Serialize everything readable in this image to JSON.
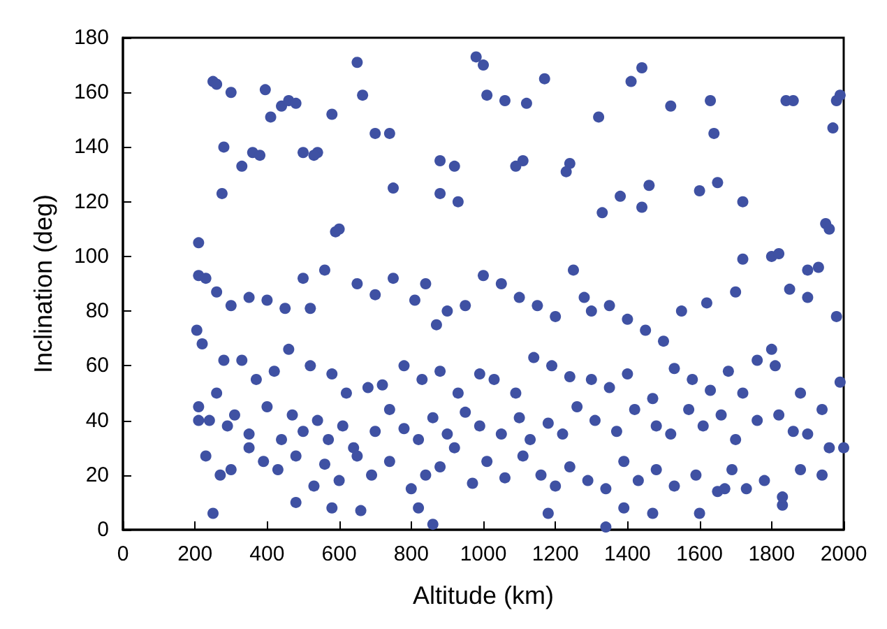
{
  "chart_data": {
    "type": "scatter",
    "xlabel": "Altitude (km)",
    "ylabel": "Inclination (deg)",
    "xlim": [
      0,
      2000
    ],
    "xticks": [
      0,
      200,
      400,
      600,
      800,
      1000,
      1200,
      1400,
      1600,
      1800,
      2000
    ],
    "ylim": [
      0,
      180
    ],
    "yticks": [
      0,
      20,
      40,
      60,
      80,
      100,
      120,
      140,
      160,
      180
    ],
    "marker": "circle",
    "series": [
      {
        "color": "#3f51a3",
        "x": [
          250,
          260,
          210,
          205,
          210,
          300,
          330,
          395,
          410,
          440,
          460,
          650,
          665,
          700,
          980,
          1000,
          1010,
          1060,
          1120,
          1170,
          1410,
          1440,
          1520,
          1630,
          1640,
          1840,
          1860,
          1980,
          1990,
          1970,
          1320,
          1330,
          1240,
          1230,
          1110,
          1090,
          880,
          920,
          750,
          740,
          540,
          580,
          480,
          500,
          530,
          360,
          380,
          280,
          275,
          880,
          930,
          1380,
          1440,
          1460,
          1600,
          1650,
          1720,
          1950,
          1960,
          1720,
          1800,
          1820,
          1900,
          1930,
          210,
          230,
          260,
          300,
          350,
          400,
          450,
          500,
          520,
          560,
          600,
          590,
          650,
          700,
          750,
          810,
          840,
          870,
          900,
          950,
          1000,
          1050,
          1100,
          1150,
          1200,
          1250,
          1280,
          1300,
          1350,
          1400,
          1450,
          1500,
          1550,
          1620,
          1700,
          1760,
          1800,
          1850,
          1900,
          1980,
          220,
          280,
          330,
          370,
          420,
          460,
          520,
          580,
          620,
          680,
          720,
          780,
          830,
          880,
          930,
          990,
          1030,
          1090,
          1140,
          1190,
          1240,
          1300,
          1350,
          1400,
          1470,
          1530,
          1580,
          1630,
          1680,
          1720,
          1810,
          1880,
          1940,
          1990,
          210,
          240,
          260,
          290,
          310,
          350,
          400,
          440,
          470,
          500,
          540,
          570,
          610,
          640,
          700,
          740,
          780,
          820,
          860,
          900,
          950,
          990,
          1050,
          1100,
          1130,
          1180,
          1220,
          1260,
          1310,
          1370,
          1420,
          1480,
          1520,
          1570,
          1610,
          1660,
          1700,
          1760,
          1820,
          1860,
          1900,
          1960,
          2000,
          230,
          270,
          300,
          350,
          390,
          430,
          480,
          530,
          560,
          600,
          650,
          690,
          740,
          800,
          840,
          880,
          920,
          970,
          1010,
          1060,
          1110,
          1160,
          1200,
          1240,
          1290,
          1340,
          1390,
          1430,
          1480,
          1530,
          1590,
          1650,
          1690,
          1730,
          1780,
          1830,
          1880,
          1940,
          250,
          480,
          580,
          660,
          820,
          860,
          1180,
          1340,
          1390,
          1470,
          1600,
          1670,
          1830
        ],
        "values": [
          164,
          163,
          105,
          73,
          40,
          160,
          133,
          161,
          151,
          155,
          157,
          171,
          159,
          145,
          173,
          170,
          159,
          157,
          156,
          165,
          164,
          169,
          155,
          157,
          145,
          157,
          157,
          157,
          159,
          147,
          151,
          116,
          134,
          131,
          135,
          133,
          135,
          133,
          125,
          145,
          138,
          152,
          156,
          138,
          137,
          138,
          137,
          140,
          123,
          123,
          120,
          122,
          118,
          126,
          124,
          127,
          120,
          112,
          110,
          99,
          100,
          101,
          95,
          96,
          93,
          92,
          87,
          82,
          85,
          84,
          81,
          92,
          81,
          95,
          110,
          109,
          90,
          86,
          92,
          84,
          90,
          75,
          80,
          82,
          93,
          90,
          85,
          82,
          78,
          95,
          85,
          80,
          82,
          77,
          73,
          69,
          80,
          83,
          87,
          62,
          66,
          88,
          85,
          78,
          68,
          62,
          62,
          55,
          58,
          66,
          60,
          57,
          50,
          52,
          53,
          60,
          55,
          58,
          50,
          57,
          55,
          50,
          63,
          60,
          56,
          55,
          52,
          57,
          48,
          59,
          55,
          51,
          58,
          50,
          60,
          50,
          44,
          54,
          45,
          40,
          50,
          38,
          42,
          35,
          45,
          33,
          42,
          36,
          40,
          33,
          38,
          30,
          36,
          44,
          37,
          33,
          41,
          35,
          43,
          38,
          35,
          41,
          33,
          39,
          35,
          45,
          40,
          36,
          44,
          38,
          35,
          44,
          38,
          42,
          33,
          40,
          42,
          36,
          35,
          30,
          30,
          27,
          20,
          22,
          30,
          25,
          22,
          27,
          16,
          24,
          18,
          27,
          20,
          25,
          15,
          20,
          23,
          30,
          17,
          25,
          19,
          27,
          20,
          16,
          23,
          18,
          15,
          25,
          18,
          22,
          16,
          20,
          14,
          22,
          15,
          18,
          9,
          22,
          20,
          6,
          10,
          8,
          7,
          8,
          2,
          6,
          1,
          8,
          6,
          6,
          15,
          12
        ]
      }
    ]
  }
}
